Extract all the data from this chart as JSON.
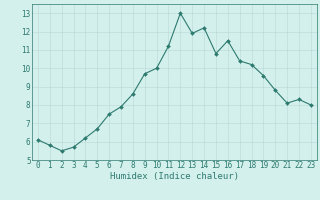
{
  "x": [
    0,
    1,
    2,
    3,
    4,
    5,
    6,
    7,
    8,
    9,
    10,
    11,
    12,
    13,
    14,
    15,
    16,
    17,
    18,
    19,
    20,
    21,
    22,
    23
  ],
  "y": [
    6.1,
    5.8,
    5.5,
    5.7,
    6.2,
    6.7,
    7.5,
    7.9,
    8.6,
    9.7,
    10.0,
    11.2,
    13.0,
    11.9,
    12.2,
    10.8,
    11.5,
    10.4,
    10.2,
    9.6,
    8.8,
    8.1,
    8.3,
    8.0
  ],
  "line_color": "#2d7a6e",
  "marker": "D",
  "marker_size": 2.0,
  "bg_color": "#d4f0ed",
  "grid_color": "#b8d8d4",
  "xlabel": "Humidex (Indice chaleur)",
  "xlim": [
    -0.5,
    23.5
  ],
  "ylim": [
    5,
    13.5
  ],
  "yticks": [
    5,
    6,
    7,
    8,
    9,
    10,
    11,
    12,
    13
  ],
  "xticks": [
    0,
    1,
    2,
    3,
    4,
    5,
    6,
    7,
    8,
    9,
    10,
    11,
    12,
    13,
    14,
    15,
    16,
    17,
    18,
    19,
    20,
    21,
    22,
    23
  ],
  "tick_color": "#2d7a6e",
  "label_fontsize": 5.5,
  "axis_fontsize": 6.5
}
